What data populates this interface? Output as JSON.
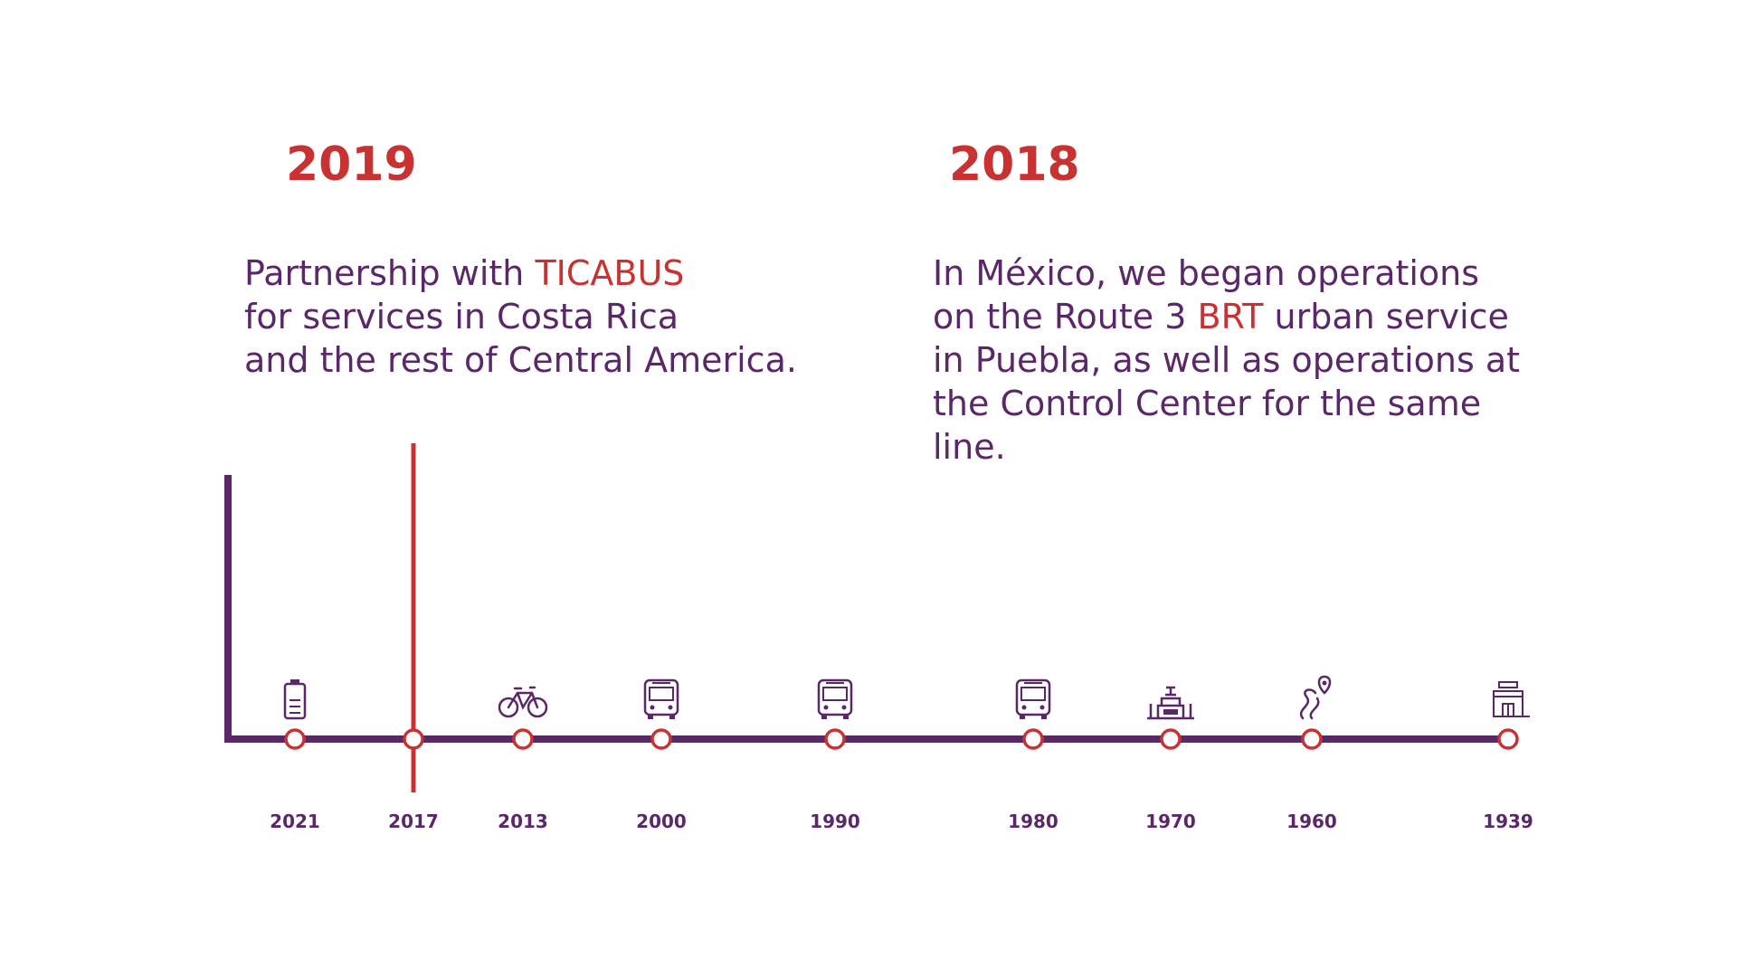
{
  "entries": [
    {
      "year": "2019",
      "description": [
        [
          {
            "text": "Partnership with "
          },
          {
            "text": "TICABUS",
            "highlight": true
          }
        ],
        [
          {
            "text": "for services in Costa Rica"
          }
        ],
        [
          {
            "text": "and the rest of Central America."
          }
        ]
      ]
    },
    {
      "year": "2018",
      "description": [
        [
          {
            "text": "In México, we began operations"
          }
        ],
        [
          {
            "text": "on the Route 3 "
          },
          {
            "text": "BRT",
            "highlight": true
          },
          {
            "text": " urban service"
          }
        ],
        [
          {
            "text": "in Puebla, as well as operations at"
          }
        ],
        [
          {
            "text": "the Control Center for the same"
          }
        ],
        [
          {
            "text": "line."
          }
        ]
      ]
    }
  ],
  "timeline": {
    "active_year": "2017",
    "milestones": [
      {
        "year": "2021",
        "icon": "battery-icon"
      },
      {
        "year": "2017",
        "icon": ""
      },
      {
        "year": "2013",
        "icon": "bicycle-icon"
      },
      {
        "year": "2000",
        "icon": "bus-front-icon"
      },
      {
        "year": "1990",
        "icon": "bus-front-icon"
      },
      {
        "year": "1980",
        "icon": "bus-front-icon"
      },
      {
        "year": "1970",
        "icon": "building-icon"
      },
      {
        "year": "1960",
        "icon": "route-pin-icon"
      },
      {
        "year": "1939",
        "icon": "station-icon"
      }
    ]
  },
  "colors": {
    "accent": "#c93232",
    "primary": "#5a2768"
  }
}
